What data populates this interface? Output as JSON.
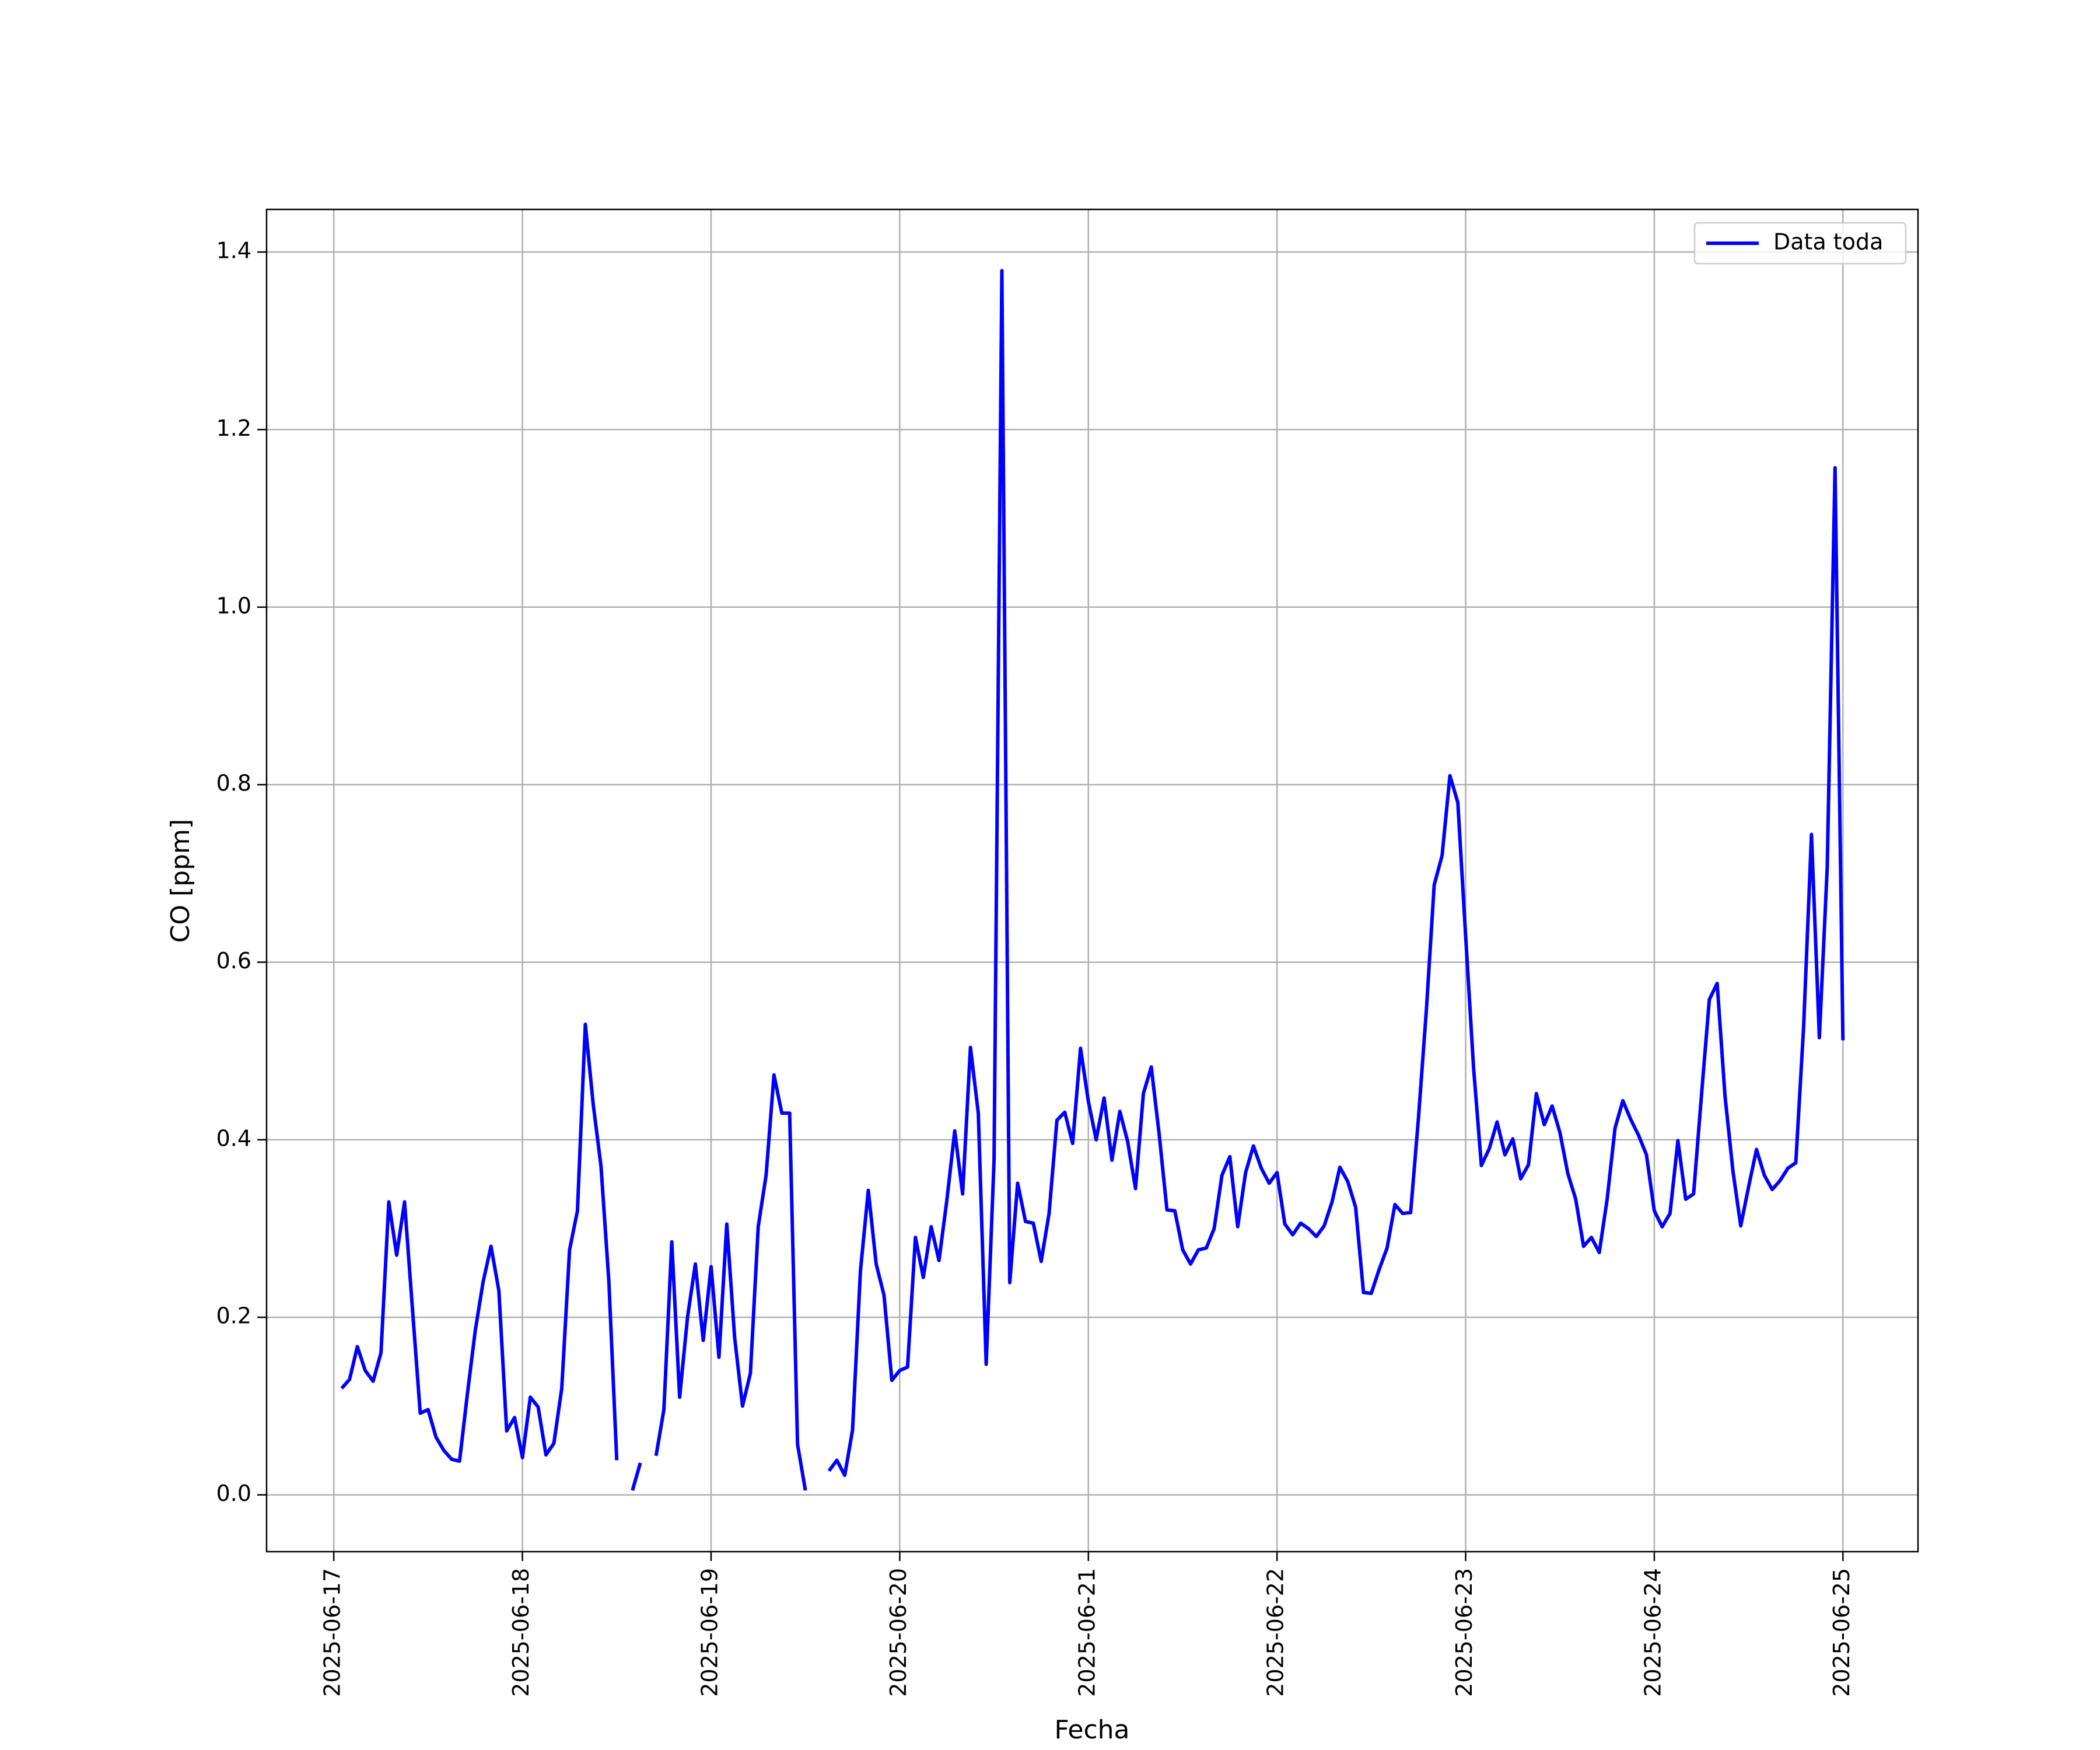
{
  "chart_data": {
    "type": "line",
    "xlabel": "Fecha",
    "ylabel": "CO [ppm]",
    "x": [
      "2025-06-17T01:00",
      "2025-06-17T02:00",
      "2025-06-17T03:00",
      "2025-06-17T04:00",
      "2025-06-17T05:00",
      "2025-06-17T06:00",
      "2025-06-17T07:00",
      "2025-06-17T08:00",
      "2025-06-17T09:00",
      "2025-06-17T10:00",
      "2025-06-17T11:00",
      "2025-06-17T12:00",
      "2025-06-17T13:00",
      "2025-06-17T14:00",
      "2025-06-17T15:00",
      "2025-06-17T16:00",
      "2025-06-17T17:00",
      "2025-06-17T18:00",
      "2025-06-17T19:00",
      "2025-06-17T20:00",
      "2025-06-17T21:00",
      "2025-06-17T22:00",
      "2025-06-17T23:00",
      "2025-06-18T00:00",
      "2025-06-18T01:00",
      "2025-06-18T02:00",
      "2025-06-18T03:00",
      "2025-06-18T04:00",
      "2025-06-18T05:00",
      "2025-06-18T06:00",
      "2025-06-18T07:00",
      "2025-06-18T08:00",
      "2025-06-18T09:00",
      "2025-06-18T10:00",
      "2025-06-18T11:00",
      "2025-06-18T12:00",
      "2025-06-18T13:00",
      "2025-06-18T14:00",
      "2025-06-18T15:00",
      "2025-06-18T16:00",
      "2025-06-18T17:00",
      "2025-06-18T18:00",
      "2025-06-18T19:00",
      "2025-06-18T20:00",
      "2025-06-18T21:00",
      "2025-06-18T22:00",
      "2025-06-18T23:00",
      "2025-06-19T00:00",
      "2025-06-19T01:00",
      "2025-06-19T02:00",
      "2025-06-19T03:00",
      "2025-06-19T04:00",
      "2025-06-19T05:00",
      "2025-06-19T06:00",
      "2025-06-19T07:00",
      "2025-06-19T08:00",
      "2025-06-19T09:00",
      "2025-06-19T10:00",
      "2025-06-19T11:00",
      "2025-06-19T12:00",
      "2025-06-19T13:00",
      "2025-06-19T14:00",
      "2025-06-19T15:00",
      "2025-06-19T16:00",
      "2025-06-19T17:00",
      "2025-06-19T18:00",
      "2025-06-19T19:00",
      "2025-06-19T20:00",
      "2025-06-19T21:00",
      "2025-06-19T22:00",
      "2025-06-19T23:00",
      "2025-06-20T00:00",
      "2025-06-20T01:00",
      "2025-06-20T02:00",
      "2025-06-20T03:00",
      "2025-06-20T04:00",
      "2025-06-20T05:00",
      "2025-06-20T06:00",
      "2025-06-20T07:00",
      "2025-06-20T08:00",
      "2025-06-20T09:00",
      "2025-06-20T10:00",
      "2025-06-20T11:00",
      "2025-06-20T12:00",
      "2025-06-20T13:00",
      "2025-06-20T14:00",
      "2025-06-20T15:00",
      "2025-06-20T16:00",
      "2025-06-20T17:00",
      "2025-06-20T18:00",
      "2025-06-20T19:00",
      "2025-06-20T20:00",
      "2025-06-20T21:00",
      "2025-06-20T22:00",
      "2025-06-20T23:00",
      "2025-06-21T00:00",
      "2025-06-21T01:00",
      "2025-06-21T02:00",
      "2025-06-21T03:00",
      "2025-06-21T04:00",
      "2025-06-21T05:00",
      "2025-06-21T06:00",
      "2025-06-21T07:00",
      "2025-06-21T08:00",
      "2025-06-21T09:00",
      "2025-06-21T10:00",
      "2025-06-21T11:00",
      "2025-06-21T12:00",
      "2025-06-21T13:00",
      "2025-06-21T14:00",
      "2025-06-21T15:00",
      "2025-06-21T16:00",
      "2025-06-21T17:00",
      "2025-06-21T18:00",
      "2025-06-21T19:00",
      "2025-06-21T20:00",
      "2025-06-21T21:00",
      "2025-06-21T22:00",
      "2025-06-21T23:00",
      "2025-06-22T00:00",
      "2025-06-22T01:00",
      "2025-06-22T02:00",
      "2025-06-22T03:00",
      "2025-06-22T04:00",
      "2025-06-22T05:00",
      "2025-06-22T06:00",
      "2025-06-22T07:00",
      "2025-06-22T08:00",
      "2025-06-22T09:00",
      "2025-06-22T10:00",
      "2025-06-22T11:00",
      "2025-06-22T12:00",
      "2025-06-22T13:00",
      "2025-06-22T14:00",
      "2025-06-22T15:00",
      "2025-06-22T16:00",
      "2025-06-22T17:00",
      "2025-06-22T18:00",
      "2025-06-22T19:00",
      "2025-06-22T20:00",
      "2025-06-22T21:00",
      "2025-06-22T22:00",
      "2025-06-22T23:00",
      "2025-06-23T00:00",
      "2025-06-23T01:00",
      "2025-06-23T02:00",
      "2025-06-23T03:00",
      "2025-06-23T04:00",
      "2025-06-23T05:00",
      "2025-06-23T06:00",
      "2025-06-23T07:00",
      "2025-06-23T08:00",
      "2025-06-23T09:00",
      "2025-06-23T10:00",
      "2025-06-23T11:00",
      "2025-06-23T12:00",
      "2025-06-23T13:00",
      "2025-06-23T14:00",
      "2025-06-23T15:00",
      "2025-06-23T16:00",
      "2025-06-23T17:00",
      "2025-06-23T18:00",
      "2025-06-23T19:00",
      "2025-06-23T20:00",
      "2025-06-23T21:00",
      "2025-06-23T22:00",
      "2025-06-23T23:00",
      "2025-06-24T00:00",
      "2025-06-24T01:00",
      "2025-06-24T02:00",
      "2025-06-24T03:00",
      "2025-06-24T04:00",
      "2025-06-24T05:00",
      "2025-06-24T06:00",
      "2025-06-24T07:00",
      "2025-06-24T08:00",
      "2025-06-24T09:00",
      "2025-06-24T10:00",
      "2025-06-24T11:00",
      "2025-06-24T12:00",
      "2025-06-24T13:00",
      "2025-06-24T14:00",
      "2025-06-24T15:00",
      "2025-06-24T16:00",
      "2025-06-24T17:00",
      "2025-06-24T18:00",
      "2025-06-24T19:00",
      "2025-06-24T20:00",
      "2025-06-24T21:00",
      "2025-06-24T22:00",
      "2025-06-24T23:00",
      "2025-06-25T00:00"
    ],
    "series": [
      {
        "name": "Data toda",
        "color": "#0000ff",
        "values": [
          0.12,
          0.13,
          0.167,
          0.14,
          0.128,
          0.16,
          0.33,
          0.27,
          0.33,
          0.21,
          0.092,
          0.096,
          0.065,
          0.05,
          0.04,
          0.038,
          0.114,
          0.185,
          0.24,
          0.28,
          0.23,
          0.072,
          0.087,
          0.042,
          0.11,
          0.099,
          0.045,
          0.058,
          0.12,
          0.276,
          0.32,
          0.53,
          0.44,
          0.37,
          0.24,
          0.039,
          null,
          0.005,
          0.036,
          null,
          0.044,
          0.096,
          0.285,
          0.11,
          0.2,
          0.26,
          0.174,
          0.257,
          0.155,
          0.305,
          0.177,
          0.1,
          0.137,
          0.302,
          0.36,
          0.473,
          0.43,
          0.43,
          0.057,
          0.005,
          null,
          null,
          0.027,
          0.039,
          0.022,
          0.073,
          0.252,
          0.343,
          0.26,
          0.225,
          0.129,
          0.14,
          0.144,
          0.29,
          0.245,
          0.302,
          0.264,
          0.332,
          0.41,
          0.339,
          0.504,
          0.43,
          0.147,
          0.377,
          1.379,
          0.239,
          0.351,
          0.308,
          0.306,
          0.263,
          0.317,
          0.422,
          0.431,
          0.396,
          0.503,
          0.443,
          0.4,
          0.447,
          0.377,
          0.432,
          0.398,
          0.345,
          0.452,
          0.482,
          0.407,
          0.321,
          0.32,
          0.276,
          0.26,
          0.276,
          0.278,
          0.3,
          0.36,
          0.381,
          0.302,
          0.363,
          0.393,
          0.368,
          0.351,
          0.363,
          0.305,
          0.293,
          0.306,
          0.3,
          0.291,
          0.303,
          0.33,
          0.369,
          0.353,
          0.324,
          0.228,
          0.227,
          0.254,
          0.278,
          0.327,
          0.317,
          0.318,
          0.425,
          0.546,
          0.687,
          0.72,
          0.81,
          0.78,
          0.63,
          0.482,
          0.371,
          0.39,
          0.42,
          0.383,
          0.401,
          0.356,
          0.372,
          0.452,
          0.417,
          0.438,
          0.408,
          0.362,
          0.333,
          0.28,
          0.29,
          0.273,
          0.333,
          0.413,
          0.444,
          0.423,
          0.405,
          0.383,
          0.32,
          0.302,
          0.317,
          0.399,
          0.333,
          0.339,
          0.45,
          0.558,
          0.576,
          0.449,
          0.365,
          0.303,
          0.347,
          0.389,
          0.36,
          0.344,
          0.354,
          0.368,
          0.374,
          0.527,
          0.744,
          0.515,
          0.707,
          1.157,
          0.512
        ]
      }
    ],
    "xlim": [
      "2025-06-16T15:27",
      "2025-06-25T09:33"
    ],
    "xticks": [
      "2025-06-17",
      "2025-06-18",
      "2025-06-19",
      "2025-06-20",
      "2025-06-21",
      "2025-06-22",
      "2025-06-23",
      "2025-06-24",
      "2025-06-25"
    ],
    "ylim": [
      -0.064,
      1.448
    ],
    "yticks": [
      {
        "value": 0,
        "label": "0.0"
      },
      0.2,
      0.4,
      0.6,
      0.8,
      {
        "value": 1,
        "label": "1.0"
      },
      1.2,
      1.4
    ],
    "grid": true,
    "legend": "upper right"
  }
}
